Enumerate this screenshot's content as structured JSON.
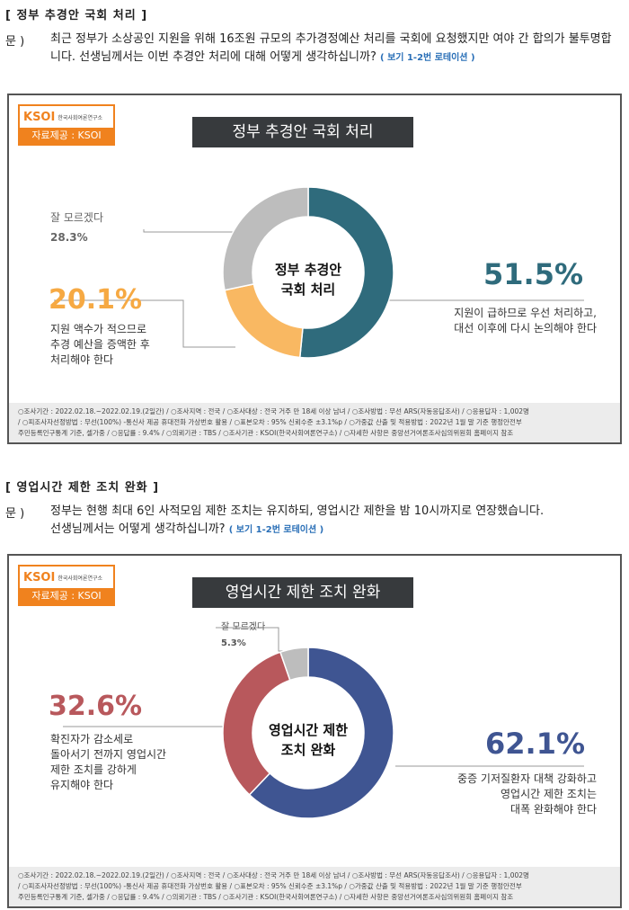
{
  "section1": {
    "title": "[ 정부 추경안 국회 처리 ]",
    "q_label": "문 )",
    "question": "최근 정부가 소상공인 지원을 위해 16조원 규모의 추가경정예산 처리를 국회에 요청했지만 여야 간 합의가 불투명합니다. 선생님께서는 이번 추경안 처리에 대해 어떻게 생각하십니까?",
    "note": "( 보기 1-2번 로테이션 )"
  },
  "section2": {
    "title": "[ 영업시간 제한 조치 완화 ]",
    "q_label": "문 )",
    "question": "정부는 현행 최대 6인 사적모임 제한 조치는 유지하되, 영업시간 제한을 밤 10시까지로 연장했습니다. 선생님께서는 어떻게 생각하십니까?",
    "note": "( 보기 1-2번 로테이션 )"
  },
  "logo": {
    "brand": "KSOI",
    "org": "한국사회여론연구소",
    "source": "자료제공 : KSOI"
  },
  "footer": {
    "line1": "○조사기간 : 2022.02.18.~2022.02.19.(2일간) / ○조사지역 : 전국 / ○조사대상 : 전국 거주 만 18세 이상 남녀 / ○조사방법 : 무선 ARS(자동응답조사) / ○응용답자 : 1,002명",
    "line2": "/ ○피조사자선정방법 : 무선(100%) -통신사 제공 휴대전화 가상번호 활용 / ○표본오차 : 95% 신뢰수준 ±3.1%p / ○가중값 산출 및 적용방법 : 2022년 1월 말 기준 행정안전부",
    "line3": "주민등록인구통계 기준, 셀가중 / ○응답률 : 9.4% / ○의뢰기관 : TBS / ○조사기관 : KSOI(한국사회여론연구소) / ○자세한 사항은 중앙선거여론조사심의위원회 홈페이지 참조"
  },
  "chart_data": [
    {
      "type": "pie",
      "title": "정부 추경안 국회 처리",
      "center_label": [
        "정부 추경안",
        "국회 처리"
      ],
      "slices": [
        {
          "label": [
            "지원이 급하므로 우선 처리하고,",
            "대선 이후에 다시 논의해야 한다"
          ],
          "value": 51.5,
          "value_label": "51.5%",
          "color": "#2f6b7c"
        },
        {
          "label": [
            "지원 액수가 적으므로",
            "추경 예산을 증액한 후",
            "처리해야 한다"
          ],
          "value": 20.1,
          "value_label": "20.1%",
          "color": "#f9b862"
        },
        {
          "label": [
            "잘 모르겠다"
          ],
          "value": 28.3,
          "value_label": "28.3%",
          "color": "#bdbdbd"
        }
      ]
    },
    {
      "type": "pie",
      "title": "영업시간 제한 조치 완화",
      "center_label": [
        "영업시간 제한",
        "조치 완화"
      ],
      "slices": [
        {
          "label": [
            "중증 기저질환자 대책 강화하고",
            "영업시간 제한 조치는",
            "대폭 완화해야 한다"
          ],
          "value": 62.1,
          "value_label": "62.1%",
          "color": "#3f5592"
        },
        {
          "label": [
            "확진자가 감소세로",
            "돌아서기 전까지 영업시간",
            "제한 조치를 강하게",
            "유지해야 한다"
          ],
          "value": 32.6,
          "value_label": "32.6%",
          "color": "#b8585c"
        },
        {
          "label": [
            "잘 모르겠다"
          ],
          "value": 5.3,
          "value_label": "5.3%",
          "color": "#bdbdbd"
        }
      ]
    }
  ]
}
